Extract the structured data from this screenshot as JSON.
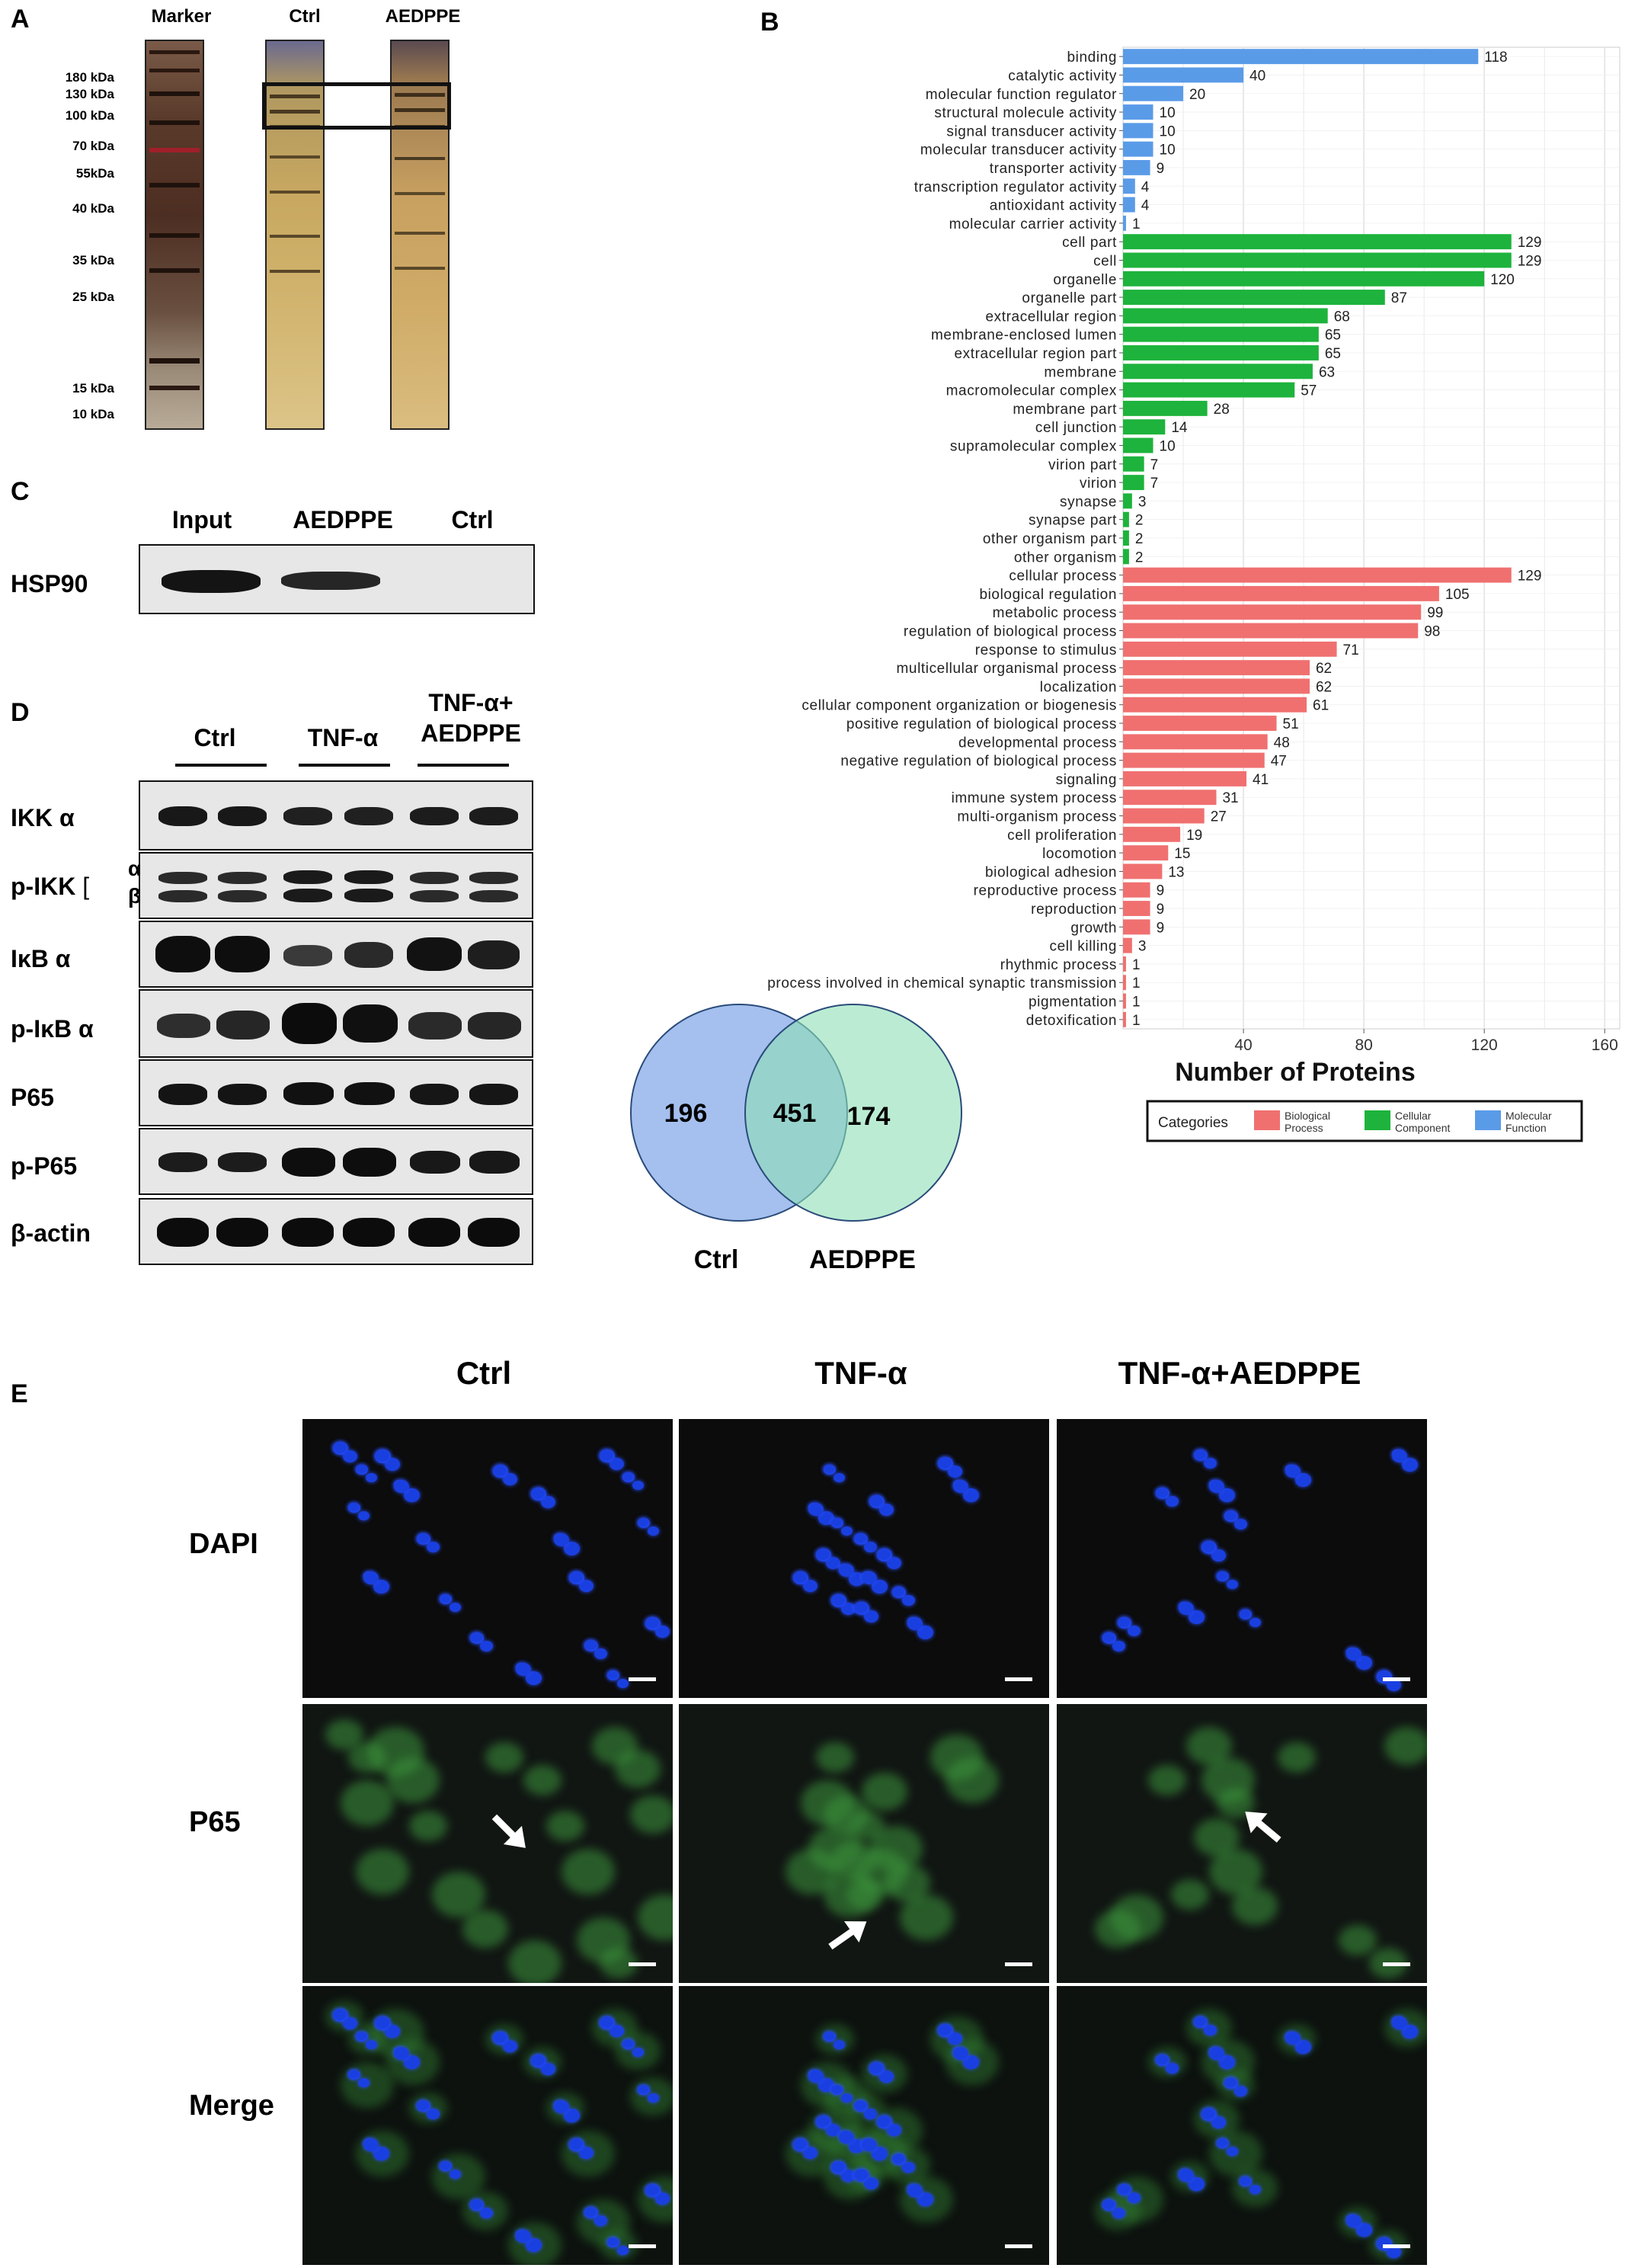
{
  "panels": {
    "a": "A",
    "b": "B",
    "c": "C",
    "d": "D",
    "e": "E"
  },
  "panel_a": {
    "lanes": [
      "Marker",
      "Ctrl",
      "AEDPPE"
    ],
    "markers": [
      "180 kDa",
      "130 kDa",
      "100 kDa",
      "70 kDa",
      "55kDa",
      "40 kDa",
      "35 kDa",
      "25 kDa",
      "15 kDa",
      "10 kDa"
    ]
  },
  "panel_c": {
    "lanes": [
      "Input",
      "AEDPPE",
      "Ctrl"
    ],
    "protein": "HSP90"
  },
  "panel_d": {
    "groups": [
      "Ctrl",
      "TNF-α",
      "TNF-α+ AEDPPE"
    ],
    "rows": [
      "IKK α",
      "p-IKK",
      "IκB α",
      "p-IκB α",
      "P65",
      "p-P65",
      "β-actin"
    ],
    "pikk_sub": {
      "alpha": "α",
      "beta": "β"
    }
  },
  "venn": {
    "left_only": "196",
    "overlap": "451",
    "right_only": "174",
    "left_label": "Ctrl",
    "right_label": "AEDPPE",
    "left_color": "#8fb0ea",
    "right_color": "#8ee0b5"
  },
  "chart_data": {
    "type": "bar",
    "orientation": "horizontal",
    "xlabel": "Number of Proteins",
    "xticks": [
      40,
      80,
      120,
      160
    ],
    "xlim": [
      0,
      165
    ],
    "grid": true,
    "legend": {
      "title": "Categories",
      "placement": "bottom",
      "entries": [
        {
          "name": "Biological Process",
          "color": "#f07070"
        },
        {
          "name": "Cellular Component",
          "color": "#1db33c"
        },
        {
          "name": "Molecular Function",
          "color": "#5a9be8"
        }
      ]
    },
    "series": [
      {
        "name": "Molecular Function",
        "color": "#5a9be8",
        "categories": [
          "binding",
          "catalytic activity",
          "molecular function regulator",
          "structural molecule activity",
          "signal transducer activity",
          "molecular transducer activity",
          "transporter activity",
          "transcription regulator activity",
          "antioxidant activity",
          "molecular carrier activity"
        ],
        "values": [
          118,
          40,
          20,
          10,
          10,
          10,
          9,
          4,
          4,
          1
        ]
      },
      {
        "name": "Cellular Component",
        "color": "#1db33c",
        "categories": [
          "cell part",
          "cell",
          "organelle",
          "organelle part",
          "extracellular region",
          "membrane-enclosed lumen",
          "extracellular region part",
          "membrane",
          "macromolecular complex",
          "membrane part",
          "cell junction",
          "supramolecular complex",
          "virion part",
          "virion",
          "synapse",
          "synapse part",
          "other organism part",
          "other organism"
        ],
        "values": [
          129,
          129,
          120,
          87,
          68,
          65,
          65,
          63,
          57,
          28,
          14,
          10,
          7,
          7,
          3,
          2,
          2,
          2
        ]
      },
      {
        "name": "Biological Process",
        "color": "#f07070",
        "categories": [
          "cellular process",
          "biological regulation",
          "metabolic process",
          "regulation of biological process",
          "response to stimulus",
          "multicellular organismal process",
          "localization",
          "cellular component organization or biogenesis",
          "positive regulation of biological process",
          "developmental process",
          "negative regulation of biological process",
          "signaling",
          "immune system process",
          "multi-organism process",
          "cell proliferation",
          "locomotion",
          "biological adhesion",
          "reproductive process",
          "reproduction",
          "growth",
          "cell killing",
          "rhythmic process",
          "presynaptic process involved in chemical synaptic transmission",
          "pigmentation",
          "detoxification"
        ],
        "values": [
          129,
          105,
          99,
          98,
          71,
          62,
          62,
          61,
          51,
          48,
          47,
          41,
          31,
          27,
          19,
          15,
          13,
          9,
          9,
          9,
          3,
          1,
          1,
          1,
          1
        ]
      }
    ]
  },
  "panel_e": {
    "columns": [
      "Ctrl",
      "TNF-α",
      "TNF-α+AEDPPE"
    ],
    "rows": [
      "DAPI",
      "P65",
      "Merge"
    ]
  }
}
